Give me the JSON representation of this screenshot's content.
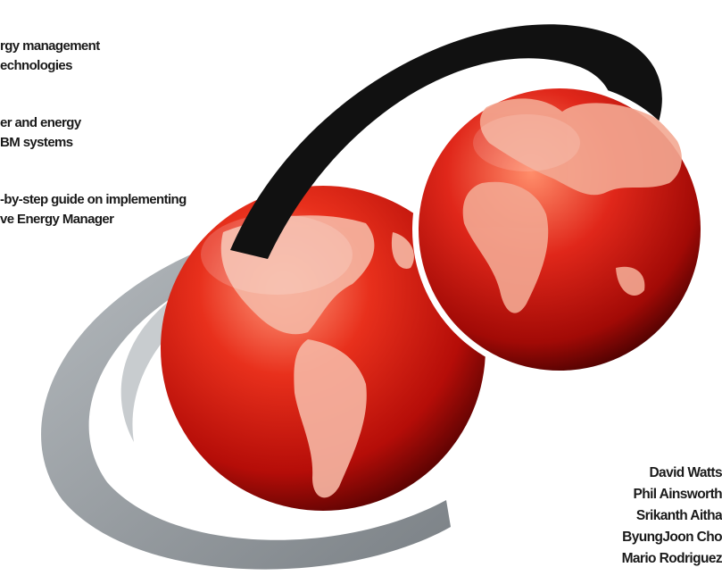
{
  "cover": {
    "highlights": [
      {
        "lines": [
          "rgy management",
          "echnologies"
        ]
      },
      {
        "lines": [
          "er and energy",
          "BM systems"
        ]
      },
      {
        "lines": [
          "-by-step guide on implementing",
          "ve Energy Manager"
        ]
      }
    ],
    "authors": [
      "David Watts",
      "Phil Ainsworth",
      "Srikanth Aitha",
      "ByungJoon Cho",
      "Mario Rodriguez"
    ]
  },
  "colors": {
    "globe_red": "#d4130f",
    "globe_dark": "#5a0202",
    "swoosh_black": "#111111",
    "swoosh_grey": "#8e9499"
  }
}
